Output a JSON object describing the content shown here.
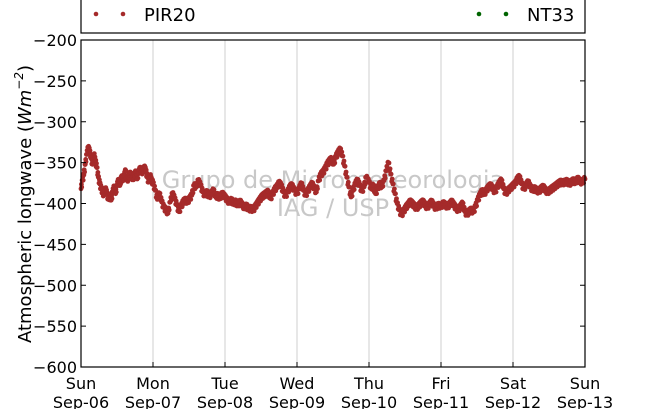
{
  "chart_data": {
    "type": "scatter",
    "title": "",
    "ylabel_text": "Atmospheric longwave (",
    "ylabel_unit": "Wm",
    "ylabel_exp": "−2",
    "ylabel_close": ")",
    "ylim": [
      -600,
      -200
    ],
    "yticks": [
      -200,
      -250,
      -300,
      -350,
      -400,
      -450,
      -500,
      -550,
      -600
    ],
    "ytick_labels": [
      "−200",
      "−250",
      "−300",
      "−350",
      "−400",
      "−450",
      "−500",
      "−550",
      "−600"
    ],
    "xlim": [
      0,
      7
    ],
    "xticks": [
      {
        "day": "Sun",
        "date": "Sep-06"
      },
      {
        "day": "Mon",
        "date": "Sep-07"
      },
      {
        "day": "Tue",
        "date": "Sep-08"
      },
      {
        "day": "Wed",
        "date": "Sep-09"
      },
      {
        "day": "Thu",
        "date": "Sep-10"
      },
      {
        "day": "Fri",
        "date": "Sep-11"
      },
      {
        "day": "Sat",
        "date": "Sep-12"
      },
      {
        "day": "Sun",
        "date": "Sep-13"
      }
    ],
    "grid": "vertical",
    "legend_placement": "above plot",
    "watermark_lines": [
      "Grupo de Micrometeorologia",
      "IAG / USP"
    ],
    "series": [
      {
        "name": "PIR20",
        "color": "#a52a2a",
        "points": [
          [
            0.0,
            -382
          ],
          [
            0.02,
            -372
          ],
          [
            0.04,
            -365
          ],
          [
            0.06,
            -352
          ],
          [
            0.08,
            -340
          ],
          [
            0.1,
            -332
          ],
          [
            0.12,
            -336
          ],
          [
            0.14,
            -345
          ],
          [
            0.16,
            -352
          ],
          [
            0.18,
            -340
          ],
          [
            0.2,
            -348
          ],
          [
            0.22,
            -356
          ],
          [
            0.24,
            -368
          ],
          [
            0.26,
            -376
          ],
          [
            0.28,
            -382
          ],
          [
            0.3,
            -386
          ],
          [
            0.32,
            -390
          ],
          [
            0.34,
            -382
          ],
          [
            0.36,
            -388
          ],
          [
            0.38,
            -395
          ],
          [
            0.4,
            -390
          ],
          [
            0.42,
            -396
          ],
          [
            0.44,
            -386
          ],
          [
            0.46,
            -380
          ],
          [
            0.48,
            -388
          ],
          [
            0.5,
            -378
          ],
          [
            0.52,
            -372
          ],
          [
            0.54,
            -378
          ],
          [
            0.56,
            -368
          ],
          [
            0.58,
            -372
          ],
          [
            0.6,
            -366
          ],
          [
            0.62,
            -360
          ],
          [
            0.64,
            -372
          ],
          [
            0.66,
            -368
          ],
          [
            0.68,
            -364
          ],
          [
            0.7,
            -366
          ],
          [
            0.72,
            -370
          ],
          [
            0.74,
            -366
          ],
          [
            0.76,
            -362
          ],
          [
            0.78,
            -370
          ],
          [
            0.8,
            -362
          ],
          [
            0.82,
            -358
          ],
          [
            0.84,
            -360
          ],
          [
            0.86,
            -362
          ],
          [
            0.88,
            -356
          ],
          [
            0.9,
            -360
          ],
          [
            0.92,
            -368
          ],
          [
            0.94,
            -374
          ],
          [
            0.96,
            -366
          ],
          [
            0.98,
            -372
          ],
          [
            1.0,
            -375
          ],
          [
            1.03,
            -384
          ],
          [
            1.06,
            -395
          ],
          [
            1.09,
            -388
          ],
          [
            1.12,
            -398
          ],
          [
            1.15,
            -405
          ],
          [
            1.18,
            -408
          ],
          [
            1.21,
            -412
          ],
          [
            1.24,
            -398
          ],
          [
            1.27,
            -388
          ],
          [
            1.3,
            -394
          ],
          [
            1.33,
            -402
          ],
          [
            1.36,
            -410
          ],
          [
            1.39,
            -404
          ],
          [
            1.42,
            -398
          ],
          [
            1.45,
            -396
          ],
          [
            1.48,
            -398
          ],
          [
            1.51,
            -394
          ],
          [
            1.54,
            -390
          ],
          [
            1.57,
            -378
          ],
          [
            1.6,
            -380
          ],
          [
            1.63,
            -372
          ],
          [
            1.66,
            -378
          ],
          [
            1.69,
            -386
          ],
          [
            1.72,
            -390
          ],
          [
            1.75,
            -386
          ],
          [
            1.78,
            -392
          ],
          [
            1.81,
            -388
          ],
          [
            1.84,
            -384
          ],
          [
            1.87,
            -392
          ],
          [
            1.9,
            -390
          ],
          [
            1.93,
            -394
          ],
          [
            1.96,
            -388
          ],
          [
            2.0,
            -392
          ],
          [
            2.03,
            -396
          ],
          [
            2.06,
            -398
          ],
          [
            2.09,
            -396
          ],
          [
            2.12,
            -400
          ],
          [
            2.15,
            -398
          ],
          [
            2.18,
            -402
          ],
          [
            2.21,
            -398
          ],
          [
            2.24,
            -402
          ],
          [
            2.27,
            -405
          ],
          [
            2.3,
            -403
          ],
          [
            2.33,
            -407
          ],
          [
            2.36,
            -406
          ],
          [
            2.39,
            -408
          ],
          [
            2.42,
            -404
          ],
          [
            2.45,
            -400
          ],
          [
            2.48,
            -396
          ],
          [
            2.51,
            -392
          ],
          [
            2.54,
            -390
          ],
          [
            2.57,
            -388
          ],
          [
            2.6,
            -386
          ],
          [
            2.63,
            -394
          ],
          [
            2.66,
            -389
          ],
          [
            2.69,
            -383
          ],
          [
            2.72,
            -380
          ],
          [
            2.75,
            -375
          ],
          [
            2.78,
            -378
          ],
          [
            2.81,
            -386
          ],
          [
            2.84,
            -391
          ],
          [
            2.87,
            -386
          ],
          [
            2.9,
            -380
          ],
          [
            2.93,
            -378
          ],
          [
            2.96,
            -384
          ],
          [
            3.0,
            -388
          ],
          [
            3.03,
            -382
          ],
          [
            3.06,
            -376
          ],
          [
            3.09,
            -384
          ],
          [
            3.12,
            -390
          ],
          [
            3.15,
            -385
          ],
          [
            3.18,
            -380
          ],
          [
            3.21,
            -376
          ],
          [
            3.24,
            -382
          ],
          [
            3.27,
            -386
          ],
          [
            3.3,
            -372
          ],
          [
            3.33,
            -365
          ],
          [
            3.36,
            -362
          ],
          [
            3.39,
            -358
          ],
          [
            3.42,
            -352
          ],
          [
            3.45,
            -348
          ],
          [
            3.48,
            -346
          ],
          [
            3.51,
            -352
          ],
          [
            3.54,
            -343
          ],
          [
            3.57,
            -338
          ],
          [
            3.6,
            -334
          ],
          [
            3.63,
            -342
          ],
          [
            3.66,
            -354
          ],
          [
            3.69,
            -368
          ],
          [
            3.72,
            -380
          ],
          [
            3.75,
            -392
          ],
          [
            3.78,
            -384
          ],
          [
            3.81,
            -376
          ],
          [
            3.84,
            -372
          ],
          [
            3.87,
            -378
          ],
          [
            3.9,
            -385
          ],
          [
            3.93,
            -380
          ],
          [
            3.96,
            -368
          ],
          [
            4.0,
            -374
          ],
          [
            4.03,
            -382
          ],
          [
            4.06,
            -378
          ],
          [
            4.09,
            -388
          ],
          [
            4.12,
            -382
          ],
          [
            4.15,
            -376
          ],
          [
            4.18,
            -380
          ],
          [
            4.21,
            -372
          ],
          [
            4.24,
            -360
          ],
          [
            4.27,
            -350
          ],
          [
            4.3,
            -364
          ],
          [
            4.33,
            -376
          ],
          [
            4.36,
            -388
          ],
          [
            4.39,
            -400
          ],
          [
            4.42,
            -408
          ],
          [
            4.45,
            -414
          ],
          [
            4.48,
            -410
          ],
          [
            4.51,
            -405
          ],
          [
            4.54,
            -402
          ],
          [
            4.57,
            -398
          ],
          [
            4.6,
            -400
          ],
          [
            4.63,
            -403
          ],
          [
            4.66,
            -406
          ],
          [
            4.69,
            -403
          ],
          [
            4.72,
            -400
          ],
          [
            4.75,
            -398
          ],
          [
            4.78,
            -402
          ],
          [
            4.81,
            -405
          ],
          [
            4.84,
            -401
          ],
          [
            4.87,
            -398
          ],
          [
            4.9,
            -403
          ],
          [
            4.93,
            -406
          ],
          [
            4.96,
            -402
          ],
          [
            5.0,
            -404
          ],
          [
            5.03,
            -400
          ],
          [
            5.06,
            -402
          ],
          [
            5.09,
            -404
          ],
          [
            5.12,
            -401
          ],
          [
            5.15,
            -398
          ],
          [
            5.18,
            -402
          ],
          [
            5.21,
            -406
          ],
          [
            5.24,
            -408
          ],
          [
            5.27,
            -404
          ],
          [
            5.3,
            -400
          ],
          [
            5.33,
            -410
          ],
          [
            5.36,
            -413
          ],
          [
            5.39,
            -410
          ],
          [
            5.42,
            -408
          ],
          [
            5.45,
            -410
          ],
          [
            5.48,
            -404
          ],
          [
            5.51,
            -396
          ],
          [
            5.54,
            -390
          ],
          [
            5.57,
            -385
          ],
          [
            5.6,
            -388
          ],
          [
            5.63,
            -384
          ],
          [
            5.66,
            -380
          ],
          [
            5.69,
            -378
          ],
          [
            5.72,
            -382
          ],
          [
            5.75,
            -386
          ],
          [
            5.78,
            -380
          ],
          [
            5.81,
            -375
          ],
          [
            5.84,
            -372
          ],
          [
            5.87,
            -382
          ],
          [
            5.9,
            -388
          ],
          [
            5.93,
            -384
          ],
          [
            5.96,
            -382
          ],
          [
            6.0,
            -378
          ],
          [
            6.03,
            -376
          ],
          [
            6.06,
            -370
          ],
          [
            6.09,
            -368
          ],
          [
            6.12,
            -376
          ],
          [
            6.15,
            -382
          ],
          [
            6.18,
            -378
          ],
          [
            6.21,
            -374
          ],
          [
            6.24,
            -380
          ],
          [
            6.27,
            -383
          ],
          [
            6.3,
            -382
          ],
          [
            6.33,
            -384
          ],
          [
            6.36,
            -385
          ],
          [
            6.39,
            -382
          ],
          [
            6.42,
            -380
          ],
          [
            6.45,
            -384
          ],
          [
            6.48,
            -386
          ],
          [
            6.51,
            -384
          ],
          [
            6.54,
            -382
          ],
          [
            6.57,
            -380
          ],
          [
            6.6,
            -378
          ],
          [
            6.63,
            -376
          ],
          [
            6.66,
            -374
          ],
          [
            6.69,
            -375
          ],
          [
            6.72,
            -374
          ],
          [
            6.75,
            -373
          ],
          [
            6.78,
            -376
          ],
          [
            6.81,
            -374
          ],
          [
            6.84,
            -372
          ],
          [
            6.87,
            -374
          ],
          [
            6.9,
            -370
          ],
          [
            6.93,
            -373
          ],
          [
            6.96,
            -374
          ],
          [
            7.0,
            -370
          ]
        ]
      },
      {
        "name": "NT33",
        "color": "#006400",
        "points": []
      }
    ]
  }
}
